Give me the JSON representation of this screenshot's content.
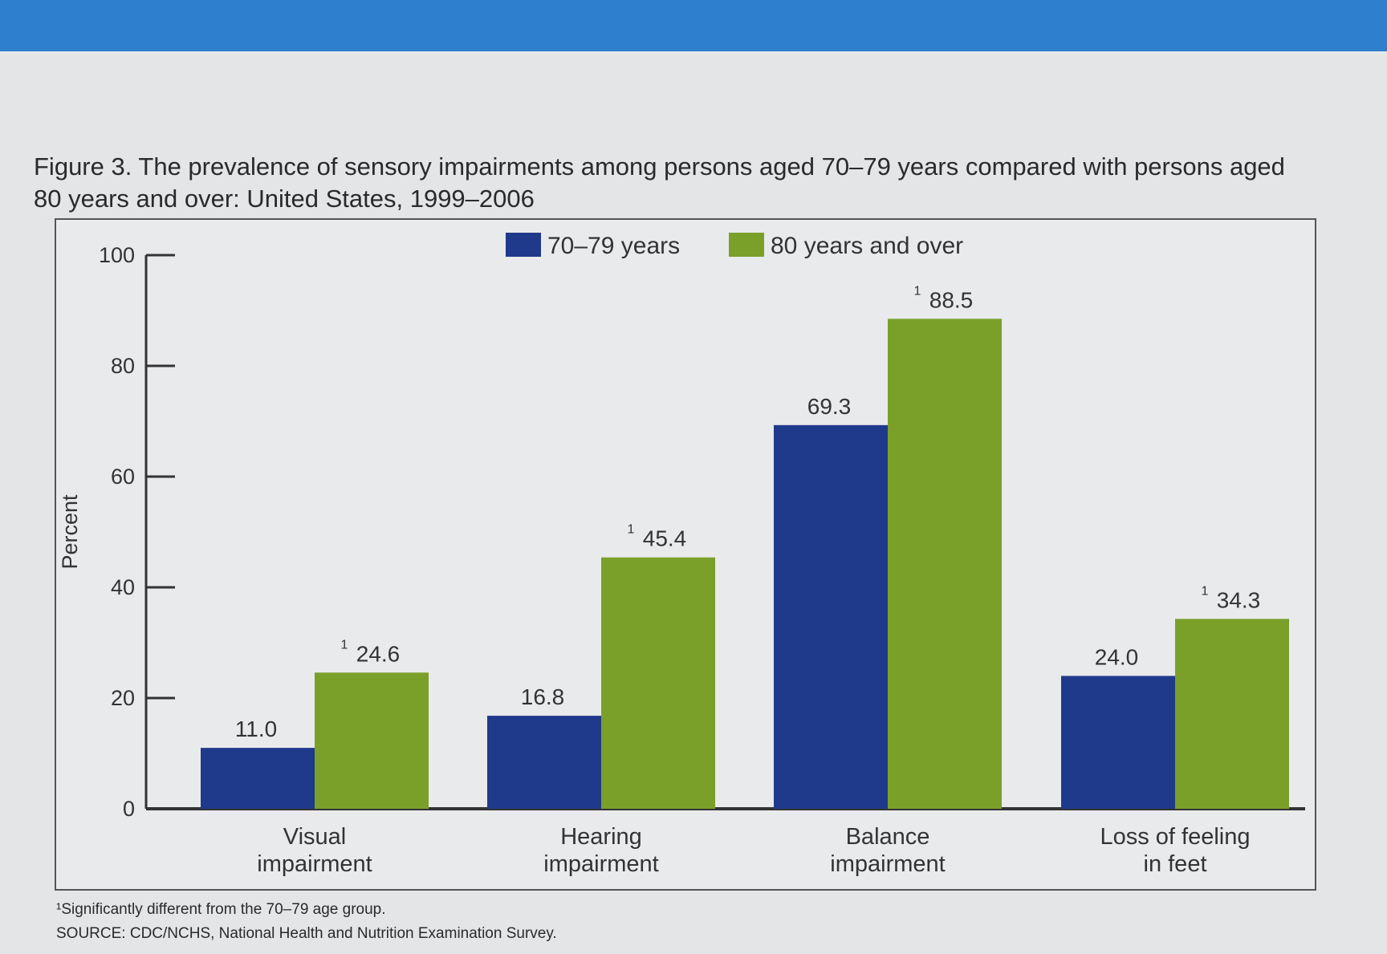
{
  "colors": {
    "series_70_79": "#1f3a8a",
    "series_80_over": "#7aa02a",
    "top_band": "#2f7fcf"
  },
  "title": "Figure 3. The prevalence of sensory impairments among persons aged 70–79 years compared with persons aged 80 years and over: United States, 1999–2006",
  "footnotes": {
    "significance": "¹Significantly different from the 70–79 age group.",
    "source": "SOURCE: CDC/NCHS, National Health and Nutrition Examination Survey."
  },
  "chart_data": {
    "type": "bar",
    "title": "Figure 3. The prevalence of sensory impairments among persons aged 70–79 years compared with persons aged 80 years and over: United States, 1999–2006",
    "xlabel": "",
    "ylabel": "Percent",
    "ylim": [
      0,
      100
    ],
    "yticks": [
      0,
      20,
      40,
      60,
      80,
      100
    ],
    "legend_position": "top-center",
    "categories": [
      [
        "Visual",
        "impairment"
      ],
      [
        "Hearing",
        "impairment"
      ],
      [
        "Balance",
        "impairment"
      ],
      [
        "Loss of feeling",
        "in feet"
      ]
    ],
    "series": [
      {
        "name": "70–79 years",
        "values": [
          11.0,
          16.8,
          69.3,
          24.0
        ],
        "labels": [
          "11.0",
          "16.8",
          "69.3",
          "24.0"
        ],
        "significant": [
          false,
          false,
          false,
          false
        ]
      },
      {
        "name": "80 years and over",
        "values": [
          24.6,
          45.4,
          88.5,
          34.3
        ],
        "labels": [
          "24.6",
          "45.4",
          "88.5",
          "34.3"
        ],
        "significant": [
          true,
          true,
          true,
          true
        ]
      }
    ],
    "significance_marker": "1"
  }
}
